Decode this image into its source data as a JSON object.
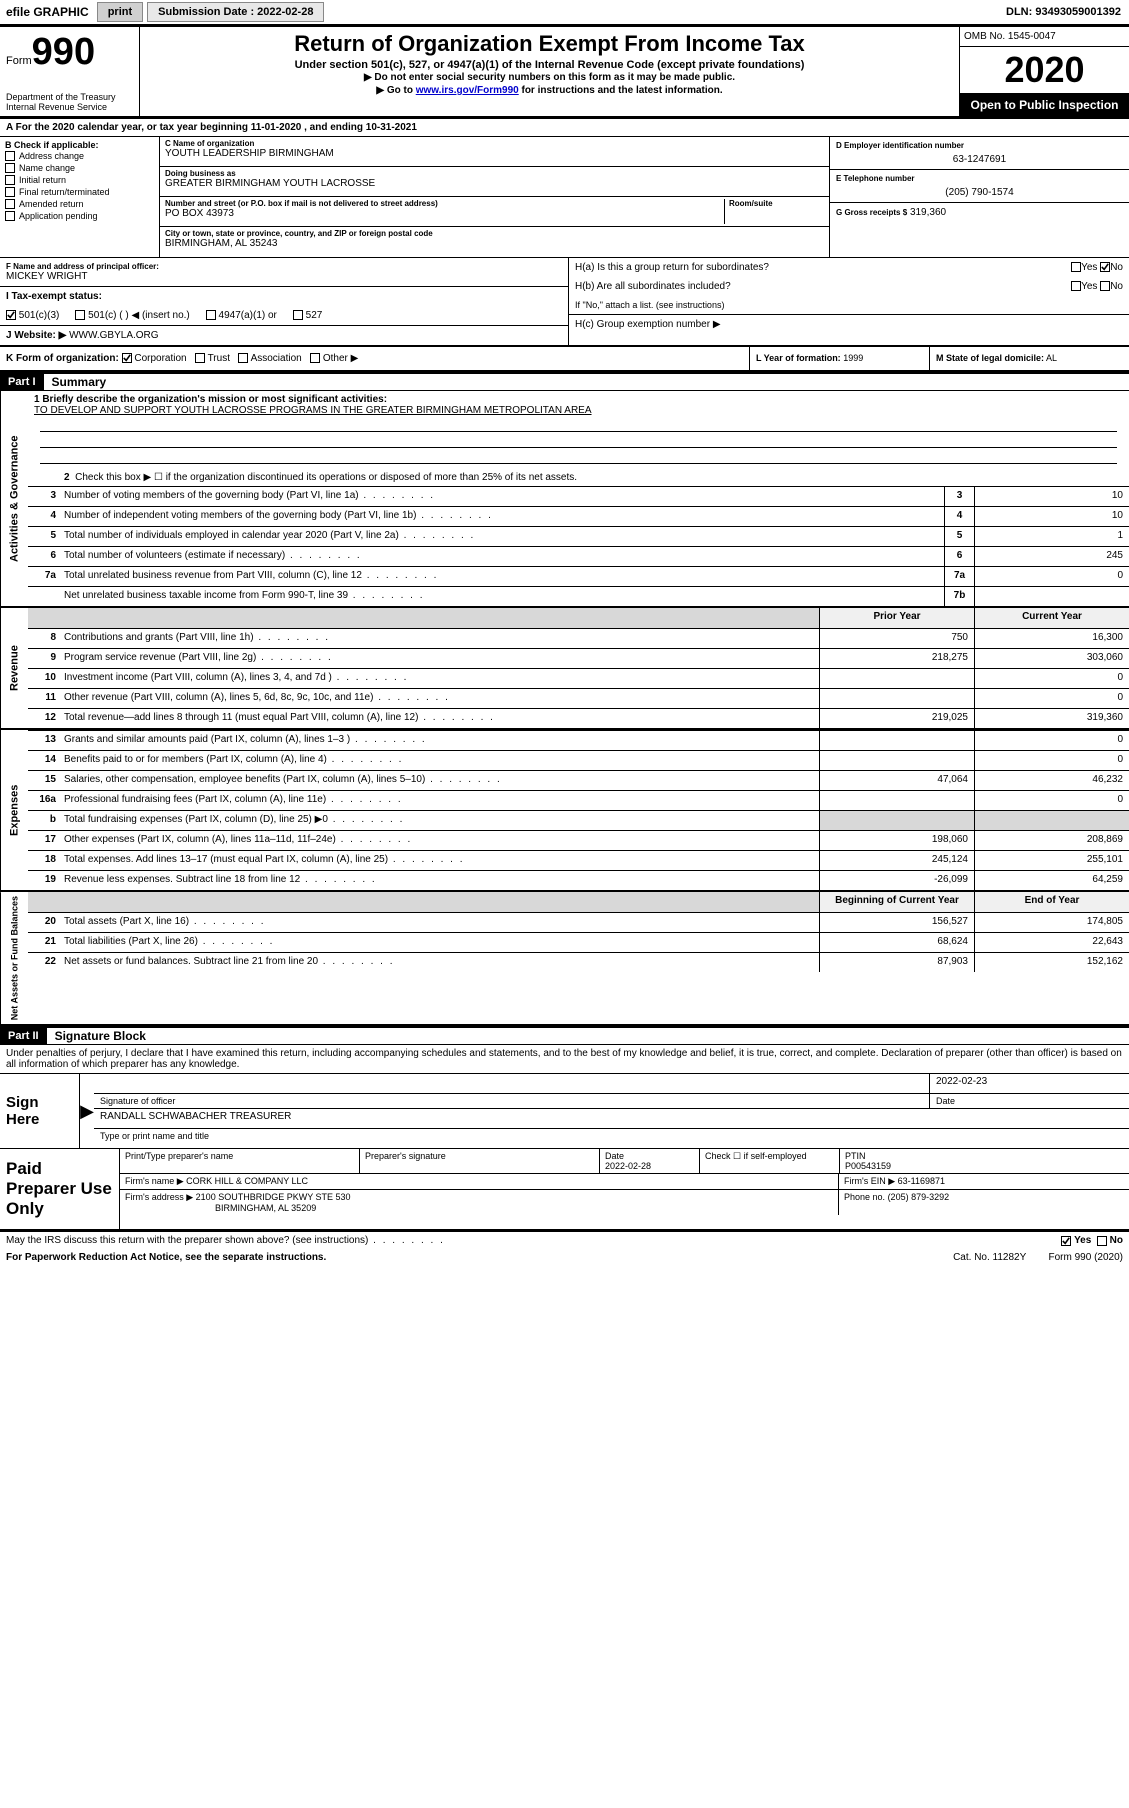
{
  "top": {
    "efile": "efile GRAPHIC",
    "print": "print",
    "submission_label": "Submission Date : ",
    "submission_date": "2022-02-28",
    "dln": "DLN: 93493059001392"
  },
  "header": {
    "form_word": "Form",
    "form_num": "990",
    "dept1": "Department of the Treasury",
    "dept2": "Internal Revenue Service",
    "title": "Return of Organization Exempt From Income Tax",
    "subtitle": "Under section 501(c), 527, or 4947(a)(1) of the Internal Revenue Code (except private foundations)",
    "instr1": "Do not enter social security numbers on this form as it may be made public.",
    "instr2_pre": "Go to ",
    "instr2_link": "www.irs.gov/Form990",
    "instr2_post": " for instructions and the latest information.",
    "omb": "OMB No. 1545-0047",
    "year": "2020",
    "open": "Open to Public Inspection"
  },
  "section_a": "A  For the 2020 calendar year, or tax year beginning 11-01-2020    , and ending 10-31-2021",
  "block_b": {
    "title": "B Check if applicable:",
    "items": [
      "Address change",
      "Name change",
      "Initial return",
      "Final return/terminated",
      "Amended return",
      "Application pending"
    ]
  },
  "block_c": {
    "name_label": "C Name of organization",
    "name": "YOUTH LEADERSHIP BIRMINGHAM",
    "dba_label": "Doing business as",
    "dba": "GREATER BIRMINGHAM YOUTH LACROSSE",
    "addr_label": "Number and street (or P.O. box if mail is not delivered to street address)",
    "room_label": "Room/suite",
    "addr": "PO BOX 43973",
    "city_label": "City or town, state or province, country, and ZIP or foreign postal code",
    "city": "BIRMINGHAM, AL  35243"
  },
  "block_d": {
    "label": "D Employer identification number",
    "value": "63-1247691"
  },
  "block_e": {
    "label": "E Telephone number",
    "value": "(205) 790-1574"
  },
  "block_g": {
    "label": "G Gross receipts $",
    "value": "319,360"
  },
  "block_f": {
    "label": "F  Name and address of principal officer:",
    "name": "MICKEY WRIGHT"
  },
  "block_h": {
    "a": "H(a)  Is this a group return for subordinates?",
    "b": "H(b)  Are all subordinates included?",
    "b_note": "If \"No,\" attach a list. (see instructions)",
    "c": "H(c)  Group exemption number ▶"
  },
  "block_i": {
    "label": "I   Tax-exempt status:",
    "opts": [
      "501(c)(3)",
      "501(c) (   ) ◀ (insert no.)",
      "4947(a)(1) or",
      "527"
    ]
  },
  "block_j": {
    "label": "J   Website: ▶",
    "value": "WWW.GBYLA.ORG"
  },
  "block_k": "K Form of organization:",
  "block_k_opts": [
    "Corporation",
    "Trust",
    "Association",
    "Other ▶"
  ],
  "block_l": {
    "label": "L Year of formation:",
    "value": "1999"
  },
  "block_m": {
    "label": "M State of legal domicile:",
    "value": "AL"
  },
  "part1": {
    "num": "Part I",
    "title": "Summary"
  },
  "summary": {
    "q1_label": "1   Briefly describe the organization's mission or most significant activities:",
    "q1_text": "TO DEVELOP AND SUPPORT YOUTH LACROSSE PROGRAMS IN THE GREATER BIRMINGHAM METROPOLITAN AREA",
    "q2": "Check this box ▶ ☐  if the organization discontinued its operations or disposed of more than 25% of its net assets.",
    "lines_gov": [
      {
        "n": "3",
        "t": "Number of voting members of the governing body (Part VI, line 1a)",
        "box": "3",
        "v": "10"
      },
      {
        "n": "4",
        "t": "Number of independent voting members of the governing body (Part VI, line 1b)",
        "box": "4",
        "v": "10"
      },
      {
        "n": "5",
        "t": "Total number of individuals employed in calendar year 2020 (Part V, line 2a)",
        "box": "5",
        "v": "1"
      },
      {
        "n": "6",
        "t": "Total number of volunteers (estimate if necessary)",
        "box": "6",
        "v": "245"
      },
      {
        "n": "7a",
        "t": "Total unrelated business revenue from Part VIII, column (C), line 12",
        "box": "7a",
        "v": "0"
      },
      {
        "n": "",
        "t": "Net unrelated business taxable income from Form 990-T, line 39",
        "box": "7b",
        "v": ""
      }
    ],
    "col_headers": {
      "prior": "Prior Year",
      "current": "Current Year",
      "boc": "Beginning of Current Year",
      "eoy": "End of Year"
    },
    "revenue": [
      {
        "n": "8",
        "t": "Contributions and grants (Part VIII, line 1h)",
        "p": "750",
        "c": "16,300"
      },
      {
        "n": "9",
        "t": "Program service revenue (Part VIII, line 2g)",
        "p": "218,275",
        "c": "303,060"
      },
      {
        "n": "10",
        "t": "Investment income (Part VIII, column (A), lines 3, 4, and 7d )",
        "p": "",
        "c": "0"
      },
      {
        "n": "11",
        "t": "Other revenue (Part VIII, column (A), lines 5, 6d, 8c, 9c, 10c, and 11e)",
        "p": "",
        "c": "0"
      },
      {
        "n": "12",
        "t": "Total revenue—add lines 8 through 11 (must equal Part VIII, column (A), line 12)",
        "p": "219,025",
        "c": "319,360"
      }
    ],
    "expenses": [
      {
        "n": "13",
        "t": "Grants and similar amounts paid (Part IX, column (A), lines 1–3 )",
        "p": "",
        "c": "0"
      },
      {
        "n": "14",
        "t": "Benefits paid to or for members (Part IX, column (A), line 4)",
        "p": "",
        "c": "0"
      },
      {
        "n": "15",
        "t": "Salaries, other compensation, employee benefits (Part IX, column (A), lines 5–10)",
        "p": "47,064",
        "c": "46,232"
      },
      {
        "n": "16a",
        "t": "Professional fundraising fees (Part IX, column (A), line 11e)",
        "p": "",
        "c": "0"
      },
      {
        "n": "b",
        "t": "Total fundraising expenses (Part IX, column (D), line 25) ▶0",
        "p": "SHADE",
        "c": "SHADE"
      },
      {
        "n": "17",
        "t": "Other expenses (Part IX, column (A), lines 11a–11d, 11f–24e)",
        "p": "198,060",
        "c": "208,869"
      },
      {
        "n": "18",
        "t": "Total expenses. Add lines 13–17 (must equal Part IX, column (A), line 25)",
        "p": "245,124",
        "c": "255,101"
      },
      {
        "n": "19",
        "t": "Revenue less expenses. Subtract line 18 from line 12",
        "p": "-26,099",
        "c": "64,259"
      }
    ],
    "netassets": [
      {
        "n": "20",
        "t": "Total assets (Part X, line 16)",
        "p": "156,527",
        "c": "174,805"
      },
      {
        "n": "21",
        "t": "Total liabilities (Part X, line 26)",
        "p": "68,624",
        "c": "22,643"
      },
      {
        "n": "22",
        "t": "Net assets or fund balances. Subtract line 21 from line 20",
        "p": "87,903",
        "c": "152,162"
      }
    ]
  },
  "side_labels": {
    "gov": "Activities & Governance",
    "rev": "Revenue",
    "exp": "Expenses",
    "net": "Net Assets or Fund Balances"
  },
  "part2": {
    "num": "Part II",
    "title": "Signature Block"
  },
  "sig": {
    "penalty": "Under penalties of perjury, I declare that I have examined this return, including accompanying schedules and statements, and to the best of my knowledge and belief, it is true, correct, and complete. Declaration of preparer (other than officer) is based on all information of which preparer has any knowledge.",
    "sign_here": "Sign Here",
    "officer_sig": "Signature of officer",
    "date_lbl": "Date",
    "date_val": "2022-02-23",
    "officer_name": "RANDALL SCHWABACHER  TREASURER",
    "type_name": "Type or print name and title"
  },
  "preparer": {
    "title": "Paid Preparer Use Only",
    "print_name": "Print/Type preparer's name",
    "prep_sig": "Preparer's signature",
    "date_lbl": "Date",
    "date": "2022-02-28",
    "check_lbl": "Check ☐ if self-employed",
    "ptin_lbl": "PTIN",
    "ptin": "P00543159",
    "firm_name_lbl": "Firm's name    ▶",
    "firm_name": "CORK HILL & COMPANY LLC",
    "firm_ein_lbl": "Firm's EIN ▶",
    "firm_ein": "63-1169871",
    "firm_addr_lbl": "Firm's address ▶",
    "firm_addr1": "2100 SOUTHBRIDGE PKWY STE 530",
    "firm_addr2": "BIRMINGHAM, AL  35209",
    "phone_lbl": "Phone no.",
    "phone": "(205) 879-3292"
  },
  "footer": {
    "discuss": "May the IRS discuss this return with the preparer shown above? (see instructions)",
    "yes": "Yes",
    "no": "No",
    "paperwork": "For Paperwork Reduction Act Notice, see the separate instructions.",
    "cat": "Cat. No. 11282Y",
    "form": "Form 990 (2020)"
  }
}
